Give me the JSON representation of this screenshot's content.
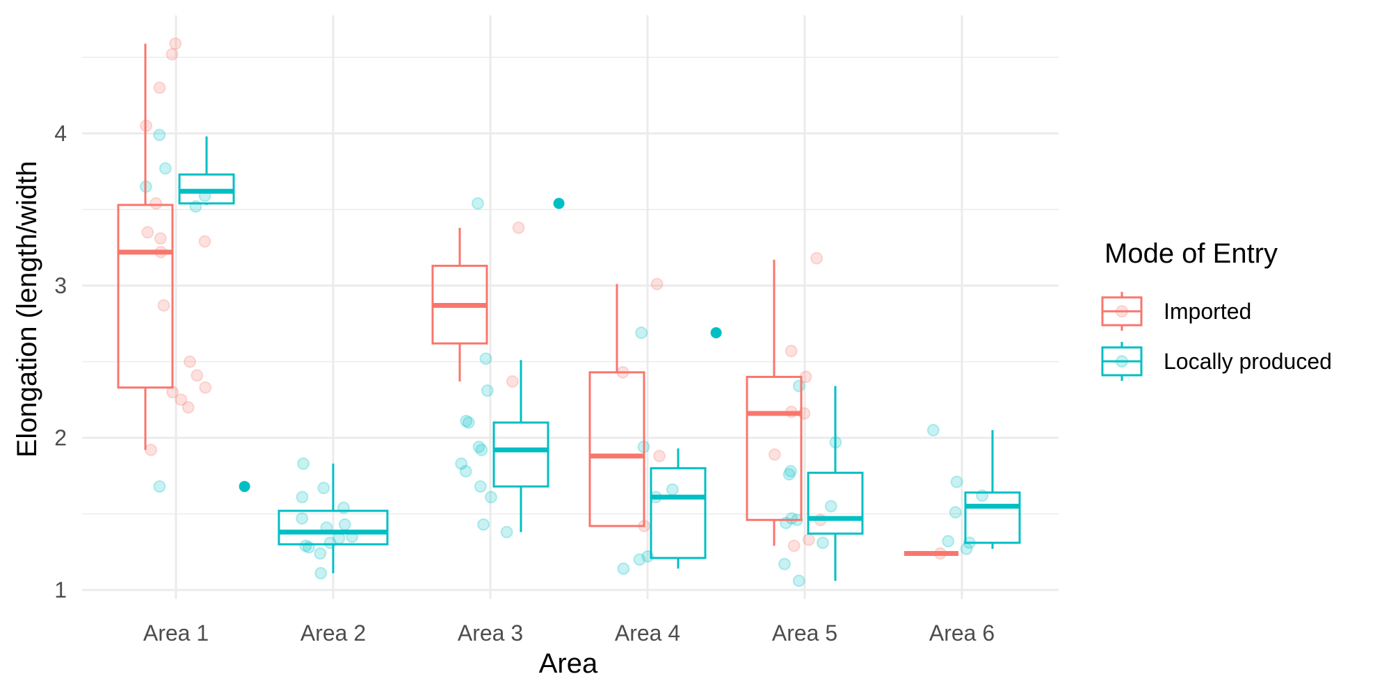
{
  "chart_data": {
    "type": "box",
    "xlabel": "Area",
    "ylabel": "Elongation (length/width",
    "categories": [
      "Area 1",
      "Area 2",
      "Area 3",
      "Area 4",
      "Area 5",
      "Area 6"
    ],
    "y_ticks": [
      1,
      2,
      3,
      4
    ],
    "ylim": [
      0.93,
      4.7
    ],
    "grid": true,
    "legend": {
      "title": "Mode of Entry",
      "position": "right",
      "entries": [
        "Imported",
        "Locally produced"
      ]
    },
    "series": [
      {
        "name": "Imported",
        "color": "#F8766D",
        "boxes": [
          {
            "category": "Area 1",
            "min": 1.92,
            "q1": 2.33,
            "median": 3.22,
            "q3": 3.53,
            "max": 4.59,
            "outliers": []
          },
          {
            "category": "Area 2",
            "present": false
          },
          {
            "category": "Area 3",
            "min": 2.37,
            "q1": 2.62,
            "median": 2.87,
            "q3": 3.13,
            "max": 3.38,
            "outliers": []
          },
          {
            "category": "Area 4",
            "min": 1.42,
            "q1": 1.42,
            "median": 1.88,
            "q3": 2.43,
            "max": 3.01,
            "outliers": []
          },
          {
            "category": "Area 5",
            "min": 1.29,
            "q1": 1.46,
            "median": 2.16,
            "q3": 2.4,
            "max": 3.17,
            "outliers": []
          },
          {
            "category": "Area 6",
            "min": 1.24,
            "q1": 1.24,
            "median": 1.24,
            "q3": 1.24,
            "max": 1.24,
            "outliers": []
          }
        ],
        "points": [
          {
            "category": "Area 1",
            "y": [
              4.52,
              4.59,
              4.3,
              4.05,
              3.54,
              3.35,
              3.29,
              3.31,
              3.22,
              2.87,
              2.5,
              2.41,
              2.33,
              2.3,
              2.25,
              2.2,
              1.92
            ]
          },
          {
            "category": "Area 3",
            "y": [
              3.38,
              2.37
            ]
          },
          {
            "category": "Area 4",
            "y": [
              3.01,
              2.43,
              1.88,
              1.42
            ]
          },
          {
            "category": "Area 5",
            "y": [
              3.18,
              2.57,
              2.4,
              2.17,
              2.16,
              1.89,
              1.46,
              1.33,
              1.29
            ]
          },
          {
            "category": "Area 6",
            "y": [
              1.24
            ]
          }
        ]
      },
      {
        "name": "Locally produced",
        "color": "#00BFC4",
        "boxes": [
          {
            "category": "Area 1",
            "min": 3.53,
            "q1": 3.54,
            "median": 3.62,
            "q3": 3.73,
            "max": 3.98,
            "outliers": [
              1.68
            ]
          },
          {
            "category": "Area 2",
            "min": 1.11,
            "q1": 1.3,
            "median": 1.38,
            "q3": 1.52,
            "max": 1.83,
            "outliers": []
          },
          {
            "category": "Area 3",
            "min": 1.38,
            "q1": 1.68,
            "median": 1.92,
            "q3": 2.1,
            "max": 2.51,
            "outliers": [
              3.54
            ]
          },
          {
            "category": "Area 4",
            "min": 1.14,
            "q1": 1.21,
            "median": 1.61,
            "q3": 1.8,
            "max": 1.93,
            "outliers": [
              2.69
            ]
          },
          {
            "category": "Area 5",
            "min": 1.06,
            "q1": 1.37,
            "median": 1.47,
            "q3": 1.77,
            "max": 2.34,
            "outliers": []
          },
          {
            "category": "Area 6",
            "min": 1.27,
            "q1": 1.31,
            "median": 1.55,
            "q3": 1.64,
            "max": 2.05,
            "outliers": []
          }
        ],
        "points": [
          {
            "category": "Area 1",
            "y": [
              3.99,
              3.77,
              3.65,
              3.59,
              3.52,
              1.68
            ]
          },
          {
            "category": "Area 2",
            "y": [
              1.83,
              1.67,
              1.61,
              1.54,
              1.47,
              1.43,
              1.41,
              1.35,
              1.34,
              1.31,
              1.29,
              1.28,
              1.24,
              1.11
            ]
          },
          {
            "category": "Area 3",
            "y": [
              3.54,
              2.52,
              2.31,
              2.11,
              2.1,
              1.94,
              1.92,
              1.83,
              1.78,
              1.68,
              1.61,
              1.43,
              1.38
            ]
          },
          {
            "category": "Area 4",
            "y": [
              2.69,
              1.94,
              1.66,
              1.61,
              1.22,
              1.2,
              1.14
            ]
          },
          {
            "category": "Area 5",
            "y": [
              2.34,
              1.97,
              1.78,
              1.76,
              1.55,
              1.47,
              1.46,
              1.44,
              1.31,
              1.17,
              1.06
            ]
          },
          {
            "category": "Area 6",
            "y": [
              2.05,
              1.71,
              1.62,
              1.51,
              1.32,
              1.31,
              1.27
            ]
          }
        ]
      }
    ]
  }
}
